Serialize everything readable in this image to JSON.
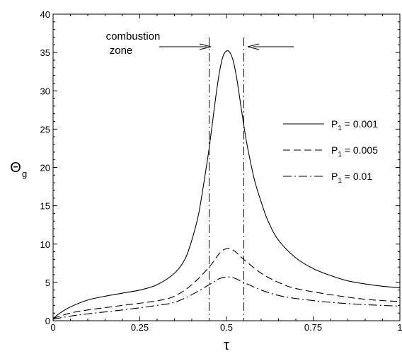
{
  "chart_data": {
    "type": "line",
    "title": "",
    "xlabel": "τ",
    "ylabel": "Θ",
    "ylabel_sub": "g",
    "xlim": [
      0,
      1
    ],
    "ylim": [
      0,
      40
    ],
    "grid": false,
    "legend_position": "right",
    "x_ticks": [
      0,
      0.25,
      0.5,
      0.75,
      1
    ],
    "x_tick_labels": [
      "0",
      "0.25",
      "0.5",
      "0.75",
      "1"
    ],
    "y_ticks": [
      0,
      5,
      10,
      15,
      20,
      25,
      30,
      35,
      40
    ],
    "y_tick_labels": [
      "0",
      "5",
      "10",
      "15",
      "20",
      "25",
      "30",
      "35",
      "40"
    ],
    "series": [
      {
        "name": "P₁ = 0.001",
        "label_main": "P",
        "label_sub": "1",
        "label_rest": " = 0.001",
        "dash": "solid",
        "x": [
          0,
          0.02,
          0.05,
          0.1,
          0.15,
          0.2,
          0.25,
          0.3,
          0.35,
          0.38,
          0.4,
          0.42,
          0.44,
          0.45,
          0.46,
          0.47,
          0.48,
          0.49,
          0.5,
          0.51,
          0.52,
          0.53,
          0.54,
          0.55,
          0.56,
          0.58,
          0.6,
          0.62,
          0.65,
          0.7,
          0.75,
          0.8,
          0.85,
          0.9,
          0.95,
          1.0
        ],
        "y": [
          0.3,
          1.0,
          1.8,
          2.7,
          3.2,
          3.6,
          4.0,
          4.7,
          6.2,
          8.0,
          10.5,
          14.0,
          19.5,
          22.5,
          26.0,
          29.5,
          32.5,
          34.5,
          35.2,
          35.0,
          33.8,
          31.5,
          28.5,
          25.5,
          22.8,
          18.5,
          15.5,
          13.0,
          10.5,
          8.2,
          6.8,
          5.9,
          5.2,
          4.8,
          4.5,
          4.3
        ]
      },
      {
        "name": "P₁ = 0.005",
        "label_main": "P",
        "label_sub": "1",
        "label_rest": " = 0.005",
        "dash": "dashed",
        "x": [
          0,
          0.05,
          0.1,
          0.2,
          0.3,
          0.35,
          0.4,
          0.45,
          0.48,
          0.5,
          0.52,
          0.55,
          0.6,
          0.65,
          0.7,
          0.8,
          0.9,
          1.0
        ],
        "y": [
          0.3,
          1.0,
          1.4,
          2.0,
          2.6,
          3.2,
          4.7,
          7.0,
          8.8,
          9.4,
          9.2,
          8.0,
          6.2,
          5.0,
          4.2,
          3.4,
          2.8,
          2.5
        ]
      },
      {
        "name": "P₁ = 0.01",
        "label_main": "P",
        "label_sub": "1",
        "label_rest": " = 0.01",
        "dash": "dashdot",
        "x": [
          0,
          0.05,
          0.1,
          0.2,
          0.3,
          0.35,
          0.4,
          0.45,
          0.48,
          0.5,
          0.52,
          0.55,
          0.6,
          0.65,
          0.7,
          0.8,
          0.9,
          1.0
        ],
        "y": [
          0.2,
          0.6,
          0.9,
          1.4,
          2.0,
          2.4,
          3.4,
          4.7,
          5.5,
          5.7,
          5.6,
          5.0,
          4.0,
          3.3,
          2.9,
          2.4,
          2.1,
          1.9
        ]
      }
    ],
    "zone_lines": [
      0.45,
      0.55
    ],
    "annotation": {
      "line1": "combustion",
      "line2": "zone"
    }
  }
}
